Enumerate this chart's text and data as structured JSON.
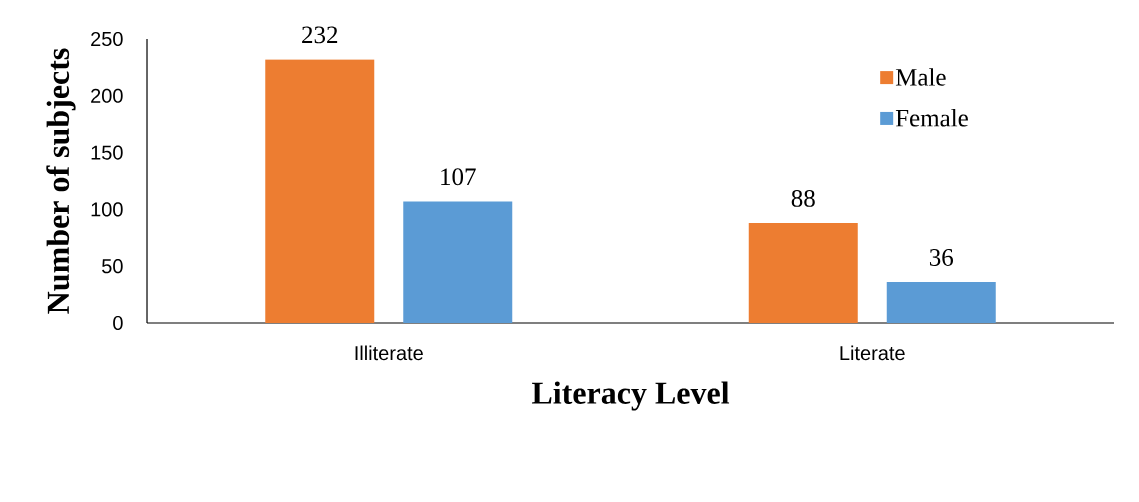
{
  "chart_data": {
    "type": "bar",
    "xlabel": "Literacy Level",
    "ylabel": "Number of subjects",
    "categories": [
      "Illiterate",
      "Literate"
    ],
    "series": [
      {
        "name": "Male",
        "color": "#ed7d31",
        "values": [
          232,
          88
        ]
      },
      {
        "name": "Female",
        "color": "#5b9bd5",
        "values": [
          107,
          36
        ]
      }
    ],
    "ylim": [
      0,
      250
    ],
    "yticks": [
      0,
      50,
      100,
      150,
      200,
      250
    ],
    "data_labels": true,
    "legend": "top right"
  }
}
